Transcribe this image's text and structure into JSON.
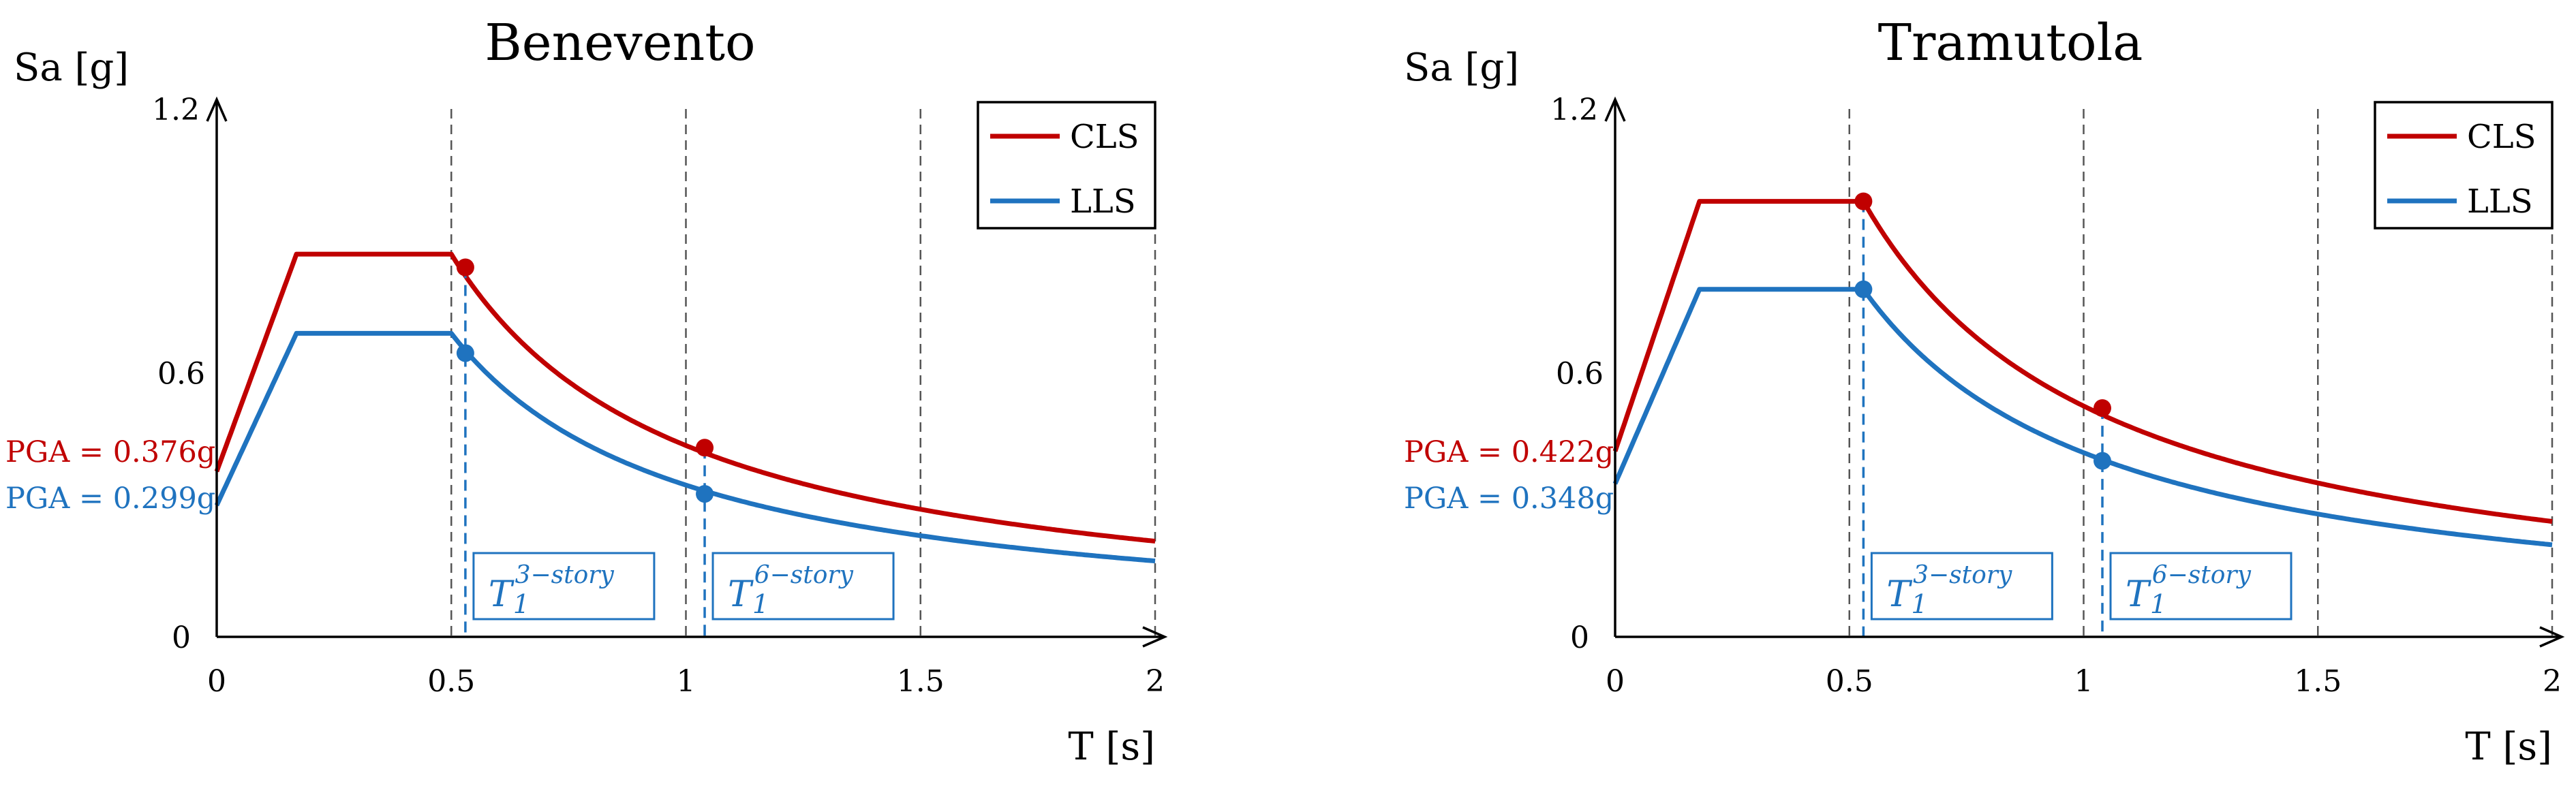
{
  "chart_data": [
    {
      "type": "line",
      "title": "Benevento",
      "xlabel": "T [s]",
      "ylabel": "Sa [g]",
      "xlim": [
        0,
        2
      ],
      "ylim": [
        0,
        1.2
      ],
      "xticks": [
        "0",
        "0.5",
        "1",
        "1.5",
        "2"
      ],
      "yticks": [
        "0",
        "0.6",
        "1.2"
      ],
      "grid_x": [
        0.5,
        1.0,
        1.5,
        2.0
      ],
      "legend": "top-right",
      "series": [
        {
          "name": "CLS",
          "color": "#c00000",
          "pga": 0.376,
          "plateau": 0.87,
          "tb": 0.17,
          "tc": 0.5
        },
        {
          "name": "LLS",
          "color": "#1f73bf",
          "pga": 0.299,
          "plateau": 0.69,
          "tb": 0.17,
          "tc": 0.5
        }
      ],
      "pga_labels": [
        "PGA = 0.376g",
        "PGA = 0.299g"
      ],
      "periods": [
        {
          "t": 0.53,
          "label_base": "T",
          "label_sub": "1",
          "label_sup": "3−story",
          "values": [
            0.84,
            0.645
          ]
        },
        {
          "t": 1.04,
          "label_base": "T",
          "label_sub": "1",
          "label_sup": "6−story",
          "values": [
            0.43,
            0.325
          ]
        }
      ]
    },
    {
      "type": "line",
      "title": "Tramutola",
      "xlabel": "T [s]",
      "ylabel": "Sa [g]",
      "xlim": [
        0,
        2
      ],
      "ylim": [
        0,
        1.2
      ],
      "xticks": [
        "0",
        "0.5",
        "1",
        "1.5",
        "2"
      ],
      "yticks": [
        "0",
        "0.6",
        "1.2"
      ],
      "grid_x": [
        0.5,
        1.0,
        1.5,
        2.0
      ],
      "legend": "top-right",
      "series": [
        {
          "name": "CLS",
          "color": "#c00000",
          "pga": 0.422,
          "plateau": 0.99,
          "tb": 0.18,
          "tc": 0.53
        },
        {
          "name": "LLS",
          "color": "#1f73bf",
          "pga": 0.348,
          "plateau": 0.79,
          "tb": 0.18,
          "tc": 0.53
        }
      ],
      "pga_labels": [
        "PGA = 0.422g",
        "PGA = 0.348g"
      ],
      "periods": [
        {
          "t": 0.53,
          "label_base": "T",
          "label_sub": "1",
          "label_sup": "3−story",
          "values": [
            0.99,
            0.79
          ]
        },
        {
          "t": 1.04,
          "label_base": "T",
          "label_sub": "1",
          "label_sup": "6−story",
          "values": [
            0.52,
            0.4
          ]
        }
      ]
    }
  ]
}
